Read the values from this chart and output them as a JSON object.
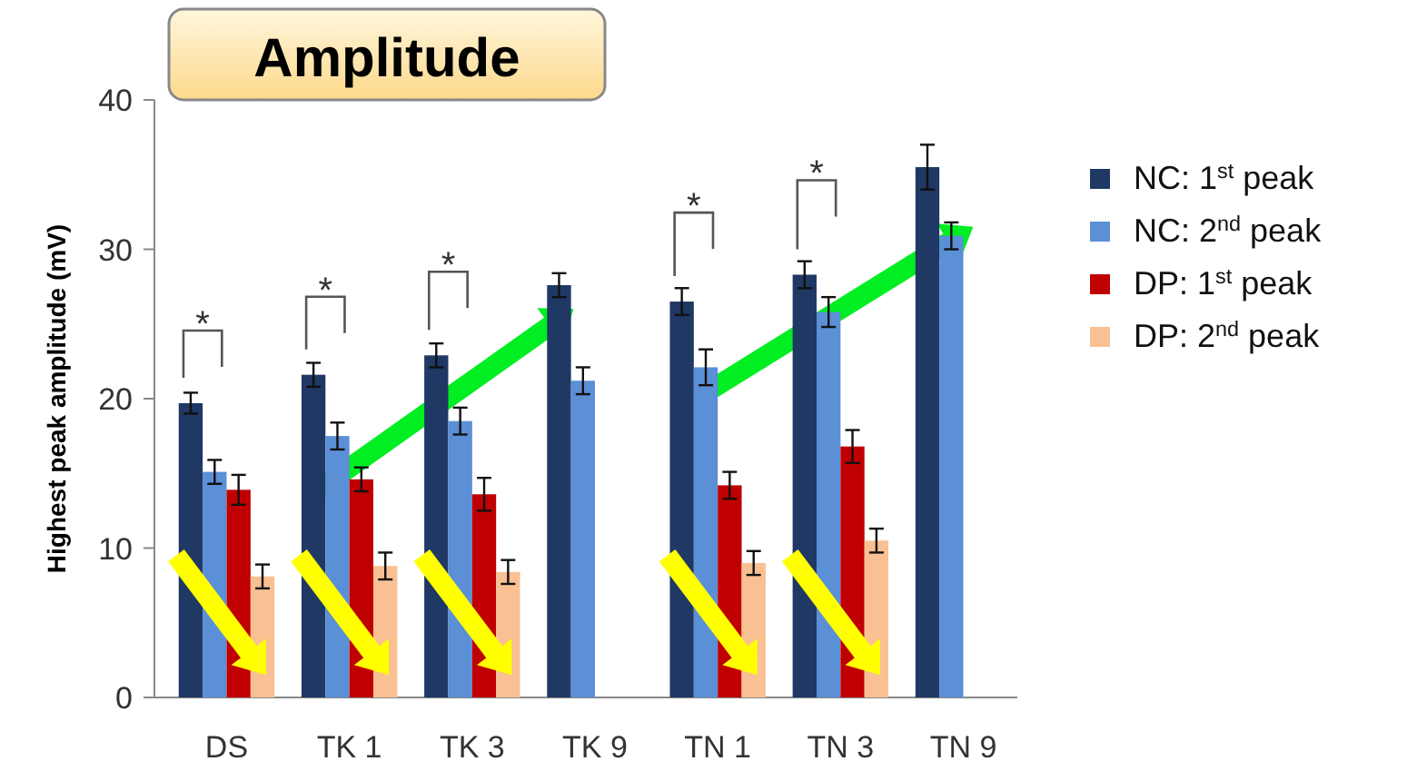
{
  "chart_data": {
    "type": "bar",
    "title": "Amplitude",
    "ylabel": "Highest peak amplitude (mV)",
    "categories": [
      "DS",
      "TK 1",
      "TK 3",
      "TK 9",
      "TN 1",
      "TN 3",
      "TN 9"
    ],
    "series": [
      {
        "name": "NC: 1$^{st}$ peak",
        "color": "#1f3864",
        "values": [
          19.7,
          21.6,
          22.9,
          27.6,
          26.5,
          28.3,
          35.5
        ],
        "errors": [
          0.7,
          0.8,
          0.8,
          0.8,
          0.9,
          0.9,
          1.5
        ]
      },
      {
        "name": "NC: 2$^{nd}$ peak",
        "color": "#5b8fd6",
        "values": [
          15.1,
          17.5,
          18.5,
          21.2,
          22.1,
          25.8,
          30.9
        ],
        "errors": [
          0.8,
          0.9,
          0.9,
          0.9,
          1.2,
          1.0,
          0.9
        ]
      },
      {
        "name": "DP: 1$^{st}$ peak",
        "color": "#c00000",
        "values": [
          13.9,
          14.6,
          13.6,
          null,
          14.2,
          16.8,
          null
        ],
        "errors": [
          1.0,
          0.8,
          1.1,
          null,
          0.9,
          1.1,
          null
        ]
      },
      {
        "name": "DP: 2$^{nd}$ peak",
        "color": "#f9c093",
        "values": [
          8.1,
          8.8,
          8.4,
          null,
          9.0,
          10.5,
          null
        ],
        "errors": [
          0.8,
          0.9,
          0.8,
          null,
          0.8,
          0.8,
          null
        ]
      }
    ],
    "ylim": [
      0,
      40
    ],
    "yticks": [
      0,
      10,
      20,
      30,
      40
    ],
    "legend": "right",
    "annotations": [
      "*",
      "*",
      "*",
      "*",
      "*"
    ]
  }
}
